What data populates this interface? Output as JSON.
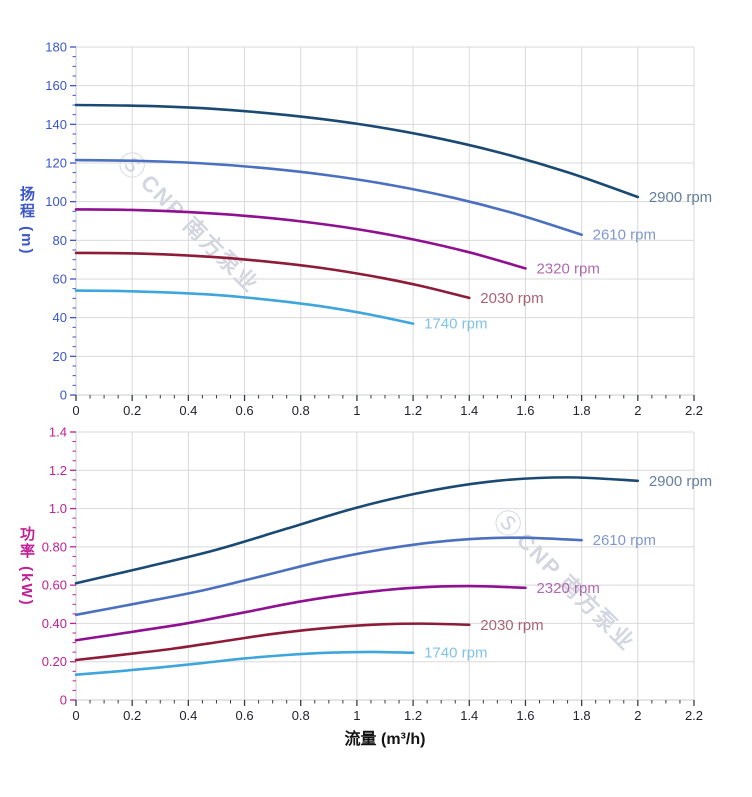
{
  "watermark": {
    "logo_glyph": "Ⓢ",
    "text": "CNP 南方泵业",
    "color": "#d3d6e0"
  },
  "chart_data": [
    {
      "type": "line",
      "id": "head-curve",
      "title": "",
      "xlabel": "",
      "ylabel": "扬程 (m)",
      "xlim": [
        0,
        2.2
      ],
      "ylim": [
        0,
        180
      ],
      "grid": true,
      "legend_position": "curve-end-labels",
      "x_tick_labels": [
        "0",
        "0.2",
        "0.4",
        "0.6",
        "0.8",
        "1",
        "1.2",
        "1.4",
        "1.6",
        "1.8",
        "2",
        "2.2"
      ],
      "y_tick_labels": [
        "0",
        "20",
        "40",
        "60",
        "80",
        "100",
        "120",
        "140",
        "160",
        "180"
      ],
      "minor_divisions": 4,
      "axis_color": "#3b55cb",
      "x_tick_color": "#3a3a45",
      "x_tick_label_color": "#23232b",
      "grid_color": "#d9d9d9",
      "axis_line_color": "#c9cbd2",
      "series": [
        {
          "name": "2900 rpm",
          "color": "#1a4a73",
          "label_color": "#64809f",
          "points": [
            [
              0,
              150
            ],
            [
              0.25,
              149.5
            ],
            [
              0.5,
              147.9
            ],
            [
              0.75,
              144.8
            ],
            [
              1,
              140.3
            ],
            [
              1.25,
              134
            ],
            [
              1.5,
              125.7
            ],
            [
              1.75,
              115.2
            ],
            [
              2,
              102.4
            ]
          ]
        },
        {
          "name": "2610 rpm",
          "color": "#4a70bf",
          "label_color": "#8097d2",
          "points": [
            [
              0,
              121.5
            ],
            [
              0.225,
              121.1
            ],
            [
              0.45,
              119.8
            ],
            [
              0.675,
              117.3
            ],
            [
              0.9,
              113.6
            ],
            [
              1.125,
              108.5
            ],
            [
              1.35,
              101.8
            ],
            [
              1.575,
              93.3
            ],
            [
              1.8,
              82.9
            ]
          ]
        },
        {
          "name": "2320 rpm",
          "color": "#8f1091",
          "label_color": "#b06ab2",
          "points": [
            [
              0,
              96
            ],
            [
              0.2,
              95.7
            ],
            [
              0.4,
              94.6
            ],
            [
              0.6,
              92.7
            ],
            [
              0.8,
              89.8
            ],
            [
              1,
              85.8
            ],
            [
              1.2,
              80.5
            ],
            [
              1.4,
              73.8
            ],
            [
              1.6,
              65.5
            ]
          ]
        },
        {
          "name": "2030 rpm",
          "color": "#8e1b38",
          "label_color": "#aa6478",
          "points": [
            [
              0,
              73.5
            ],
            [
              0.175,
              73.3
            ],
            [
              0.35,
              72.5
            ],
            [
              0.525,
              71
            ],
            [
              0.7,
              68.7
            ],
            [
              0.875,
              65.7
            ],
            [
              1.05,
              61.6
            ],
            [
              1.225,
              56.5
            ],
            [
              1.4,
              50.2
            ]
          ]
        },
        {
          "name": "1740 rpm",
          "color": "#3ea6dc",
          "label_color": "#80c3e9",
          "points": [
            [
              0,
              54
            ],
            [
              0.15,
              53.8
            ],
            [
              0.3,
              53.2
            ],
            [
              0.45,
              52.2
            ],
            [
              0.6,
              50.5
            ],
            [
              0.75,
              48.2
            ],
            [
              0.9,
              45.3
            ],
            [
              1.05,
              41.5
            ],
            [
              1.2,
              36.9
            ]
          ]
        }
      ]
    },
    {
      "type": "line",
      "id": "power-curve",
      "title": "",
      "xlabel": "流量 (m³/h)",
      "ylabel": "功率 (kW)",
      "xlim": [
        0,
        2.2
      ],
      "ylim": [
        0,
        1.4
      ],
      "grid": true,
      "legend_position": "curve-end-labels",
      "x_tick_labels": [
        "0",
        "0.2",
        "0.4",
        "0.6",
        "0.8",
        "1",
        "1.2",
        "1.4",
        "1.6",
        "1.8",
        "2",
        "2.2"
      ],
      "y_tick_labels": [
        "0",
        "0.20",
        "0.40",
        "0.60",
        "0.80",
        "1.0",
        "1.2",
        "1.4"
      ],
      "minor_divisions": 4,
      "axis_color": "#c22095",
      "x_tick_color": "#3a3a45",
      "x_tick_label_color": "#23232b",
      "grid_color": "#d9d9d9",
      "axis_line_color": "#c9cbd2",
      "series": [
        {
          "name": "2900 rpm",
          "color": "#1a4a73",
          "label_color": "#64809f",
          "points": [
            [
              0,
              0.61
            ],
            [
              0.25,
              0.695
            ],
            [
              0.5,
              0.785
            ],
            [
              0.75,
              0.895
            ],
            [
              1,
              1.005
            ],
            [
              1.25,
              1.09
            ],
            [
              1.5,
              1.145
            ],
            [
              1.75,
              1.163
            ],
            [
              2,
              1.145
            ]
          ]
        },
        {
          "name": "2610 rpm",
          "color": "#4a70bf",
          "label_color": "#8097d2",
          "points": [
            [
              0,
              0.445
            ],
            [
              0.225,
              0.507
            ],
            [
              0.45,
              0.572
            ],
            [
              0.675,
              0.652
            ],
            [
              0.9,
              0.733
            ],
            [
              1.125,
              0.795
            ],
            [
              1.35,
              0.835
            ],
            [
              1.575,
              0.848
            ],
            [
              1.8,
              0.835
            ]
          ]
        },
        {
          "name": "2320 rpm",
          "color": "#8f1091",
          "label_color": "#b06ab2",
          "points": [
            [
              0,
              0.312
            ],
            [
              0.2,
              0.356
            ],
            [
              0.4,
              0.402
            ],
            [
              0.6,
              0.458
            ],
            [
              0.8,
              0.515
            ],
            [
              1,
              0.558
            ],
            [
              1.2,
              0.586
            ],
            [
              1.4,
              0.595
            ],
            [
              1.6,
              0.586
            ]
          ]
        },
        {
          "name": "2030 rpm",
          "color": "#8e1b38",
          "label_color": "#aa6478",
          "points": [
            [
              0,
              0.209
            ],
            [
              0.175,
              0.238
            ],
            [
              0.35,
              0.269
            ],
            [
              0.525,
              0.307
            ],
            [
              0.7,
              0.345
            ],
            [
              0.875,
              0.374
            ],
            [
              1.05,
              0.393
            ],
            [
              1.225,
              0.399
            ],
            [
              1.4,
              0.393
            ]
          ]
        },
        {
          "name": "1740 rpm",
          "color": "#3ea6dc",
          "label_color": "#80c3e9",
          "points": [
            [
              0,
              0.132
            ],
            [
              0.15,
              0.15
            ],
            [
              0.3,
              0.17
            ],
            [
              0.45,
              0.193
            ],
            [
              0.6,
              0.217
            ],
            [
              0.75,
              0.235
            ],
            [
              0.9,
              0.247
            ],
            [
              1.05,
              0.251
            ],
            [
              1.2,
              0.247
            ]
          ]
        }
      ]
    }
  ]
}
